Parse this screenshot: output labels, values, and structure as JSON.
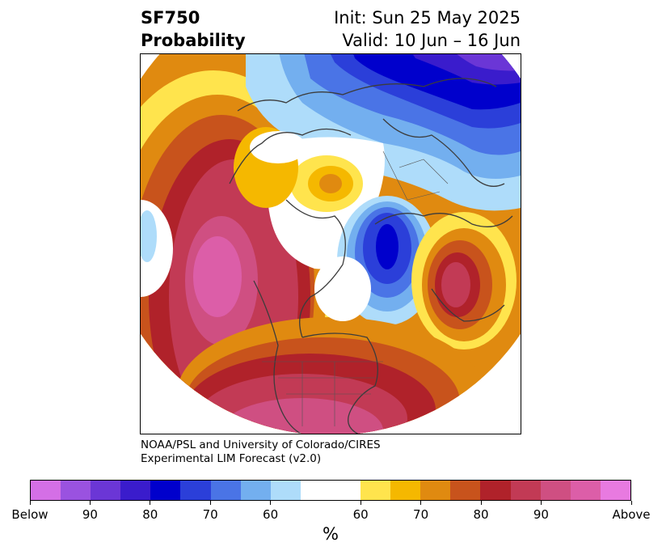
{
  "title": {
    "left_line1": "SF750",
    "left_line2": "Probability",
    "right_line1": "Init: Sun 25 May 2025",
    "right_line2": "Valid: 10 Jun – 16 Jun"
  },
  "credit": {
    "line1": "NOAA/PSL and University of Colorado/CIRES",
    "line2": "Experimental LIM Forecast (v2.0)"
  },
  "colorbar": {
    "colors": [
      "#d46fe6",
      "#9a52e0",
      "#6b36d6",
      "#3a1ccc",
      "#0000cc",
      "#2b3fd9",
      "#4a74e6",
      "#73afef",
      "#aedcfa",
      "#ffffff",
      "#ffffff",
      "#ffe44d",
      "#f5b800",
      "#e08a10",
      "#c8531c",
      "#b0222a",
      "#c23a55",
      "#cf4f82",
      "#dc5ea8",
      "#e87ae0"
    ],
    "tick_labels": [
      "Below",
      "90",
      "80",
      "70",
      "60",
      "60",
      "70",
      "80",
      "90",
      "Above"
    ],
    "units": "%"
  }
}
